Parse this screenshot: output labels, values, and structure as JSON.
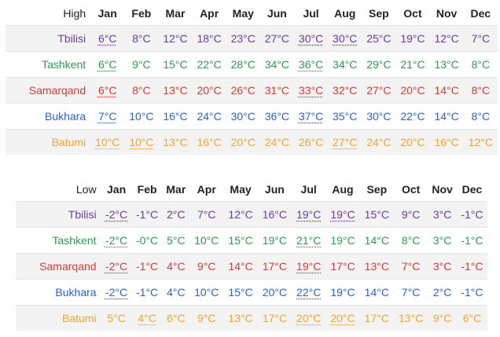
{
  "colors": {
    "Tbilisi": "#6a3a9e",
    "Tashkent": "#2e9a4e",
    "Samarqand": "#d43a2f",
    "Bukhara": "#2a62c9",
    "Batumi": "#f2a431"
  },
  "high": {
    "header_label": "High",
    "months": [
      "Jan",
      "Feb",
      "Mar",
      "Apr",
      "May",
      "Jun",
      "Jul",
      "Aug",
      "Sep",
      "Oct",
      "Nov",
      "Dec"
    ],
    "rows": [
      {
        "city": "Tbilisi",
        "values": [
          "6°C",
          "8°C",
          "12°C",
          "18°C",
          "23°C",
          "27°C",
          "30°C",
          "30°C",
          "25°C",
          "19°C",
          "12°C",
          "7°C"
        ],
        "underlined": [
          0,
          6,
          7
        ]
      },
      {
        "city": "Tashkent",
        "values": [
          "6°C",
          "9°C",
          "15°C",
          "22°C",
          "28°C",
          "34°C",
          "36°C",
          "34°C",
          "29°C",
          "21°C",
          "13°C",
          "8°C"
        ],
        "underlined": [
          0,
          6
        ]
      },
      {
        "city": "Samarqand",
        "values": [
          "6°C",
          "8°C",
          "13°C",
          "20°C",
          "26°C",
          "31°C",
          "33°C",
          "32°C",
          "27°C",
          "20°C",
          "14°C",
          "8°C"
        ],
        "underlined": [
          0,
          6
        ]
      },
      {
        "city": "Bukhara",
        "values": [
          "7°C",
          "10°C",
          "16°C",
          "24°C",
          "30°C",
          "36°C",
          "37°C",
          "35°C",
          "30°C",
          "22°C",
          "14°C",
          "8°C"
        ],
        "underlined": [
          0,
          6
        ]
      },
      {
        "city": "Batumi",
        "values": [
          "10°C",
          "10°C",
          "13°C",
          "16°C",
          "20°C",
          "24°C",
          "26°C",
          "27°C",
          "24°C",
          "20°C",
          "16°C",
          "12°C"
        ],
        "underlined": [
          0,
          1,
          7
        ]
      }
    ]
  },
  "low": {
    "header_label": "Low",
    "months": [
      "Jan",
      "Feb",
      "Mar",
      "Apr",
      "May",
      "Jun",
      "Jul",
      "Aug",
      "Sep",
      "Oct",
      "Nov",
      "Dec"
    ],
    "rows": [
      {
        "city": "Tbilisi",
        "values": [
          "-2°C",
          "-1°C",
          "2°C",
          "7°C",
          "12°C",
          "16°C",
          "19°C",
          "19°C",
          "15°C",
          "9°C",
          "3°C",
          "-1°C"
        ],
        "underlined": [
          0,
          6,
          7
        ]
      },
      {
        "city": "Tashkent",
        "values": [
          "-2°C",
          "-0°C",
          "5°C",
          "10°C",
          "15°C",
          "19°C",
          "21°C",
          "19°C",
          "14°C",
          "8°C",
          "3°C",
          "-1°C"
        ],
        "underlined": [
          0,
          6
        ]
      },
      {
        "city": "Samarqand",
        "values": [
          "-2°C",
          "-1°C",
          "4°C",
          "9°C",
          "14°C",
          "17°C",
          "19°C",
          "17°C",
          "13°C",
          "7°C",
          "3°C",
          "-1°C"
        ],
        "underlined": [
          0,
          6
        ]
      },
      {
        "city": "Bukhara",
        "values": [
          "-2°C",
          "-1°C",
          "4°C",
          "10°C",
          "15°C",
          "20°C",
          "22°C",
          "19°C",
          "14°C",
          "7°C",
          "2°C",
          "-1°C"
        ],
        "underlined": [
          0,
          6
        ]
      },
      {
        "city": "Batumi",
        "values": [
          "5°C",
          "4°C",
          "6°C",
          "9°C",
          "13°C",
          "17°C",
          "20°C",
          "20°C",
          "17°C",
          "13°C",
          "9°C",
          "6°C"
        ],
        "underlined": [
          1,
          6,
          7
        ]
      }
    ]
  }
}
